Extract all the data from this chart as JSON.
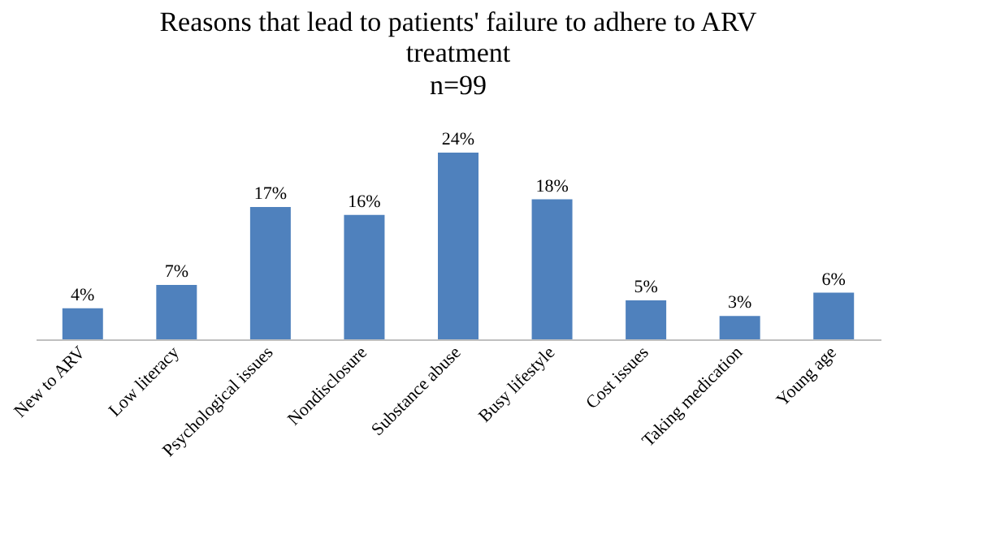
{
  "chart_data": {
    "type": "bar",
    "title": "Reasons that lead to patients' failure to adhere to ARV treatment",
    "subtitle": "n=99",
    "categories": [
      "New to ARV",
      "Low literacy",
      "Psychological issues",
      "Nondisclosure",
      "Substance abuse",
      "Busy lifestyle",
      "Cost issues",
      "Taking medication",
      "Young age"
    ],
    "values": [
      4,
      7,
      17,
      16,
      24,
      18,
      5,
      3,
      6
    ],
    "value_labels": [
      "4%",
      "7%",
      "17%",
      "16%",
      "24%",
      "18%",
      "5%",
      "3%",
      "6%"
    ],
    "color": "#4f81bd"
  }
}
